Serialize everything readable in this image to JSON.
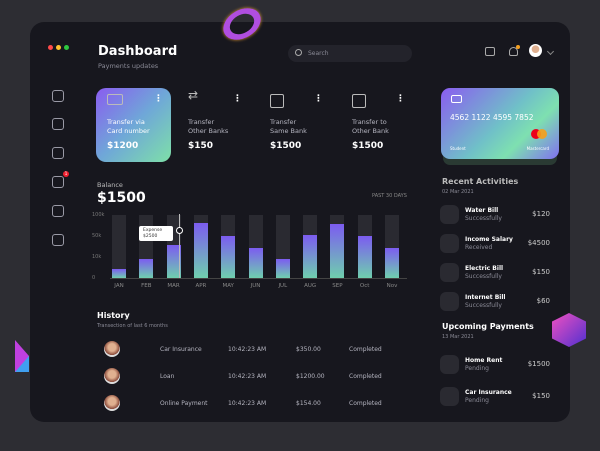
{
  "header": {
    "title": "Dashboard",
    "subtitle": "Payments updates",
    "search_placeholder": "Search"
  },
  "colors": {
    "accent_purple": "#7c5cf0",
    "accent_green": "#6fcfae",
    "panel": "#17171e"
  },
  "sidebar": {
    "items": [
      {
        "icon": "home-icon"
      },
      {
        "icon": "monitor-icon"
      },
      {
        "icon": "clipboard-icon"
      },
      {
        "icon": "message-icon",
        "badge": "1"
      },
      {
        "icon": "trophy-icon"
      },
      {
        "icon": "document-icon"
      }
    ]
  },
  "transfers": [
    {
      "label1": "Transfer via",
      "label2": "Card number",
      "amount": "$1200",
      "icon": "credit-card-icon"
    },
    {
      "label1": "Transfer",
      "label2": "Other Banks",
      "amount": "$150",
      "icon": "arrows-exchange-icon"
    },
    {
      "label1": "Transfer",
      "label2": "Same Bank",
      "amount": "$1500",
      "icon": "bank-icon"
    },
    {
      "label1": "Transfer to",
      "label2": "Other Bank",
      "amount": "$1500",
      "icon": "receipt-icon"
    }
  ],
  "balance": {
    "label": "Balance",
    "amount": "$1500",
    "period": "PAST 30 DAYS",
    "tooltip_label": "Expense",
    "tooltip_value": "$2500"
  },
  "chart_data": {
    "type": "bar",
    "categories": [
      "JAN",
      "FEB",
      "MAR",
      "APR",
      "MAY",
      "JUN",
      "JUL",
      "AUG",
      "SEP",
      "Oct",
      "Nov"
    ],
    "values": [
      15,
      30,
      52,
      88,
      66,
      48,
      30,
      69,
      85,
      66,
      48
    ],
    "yticks": [
      "100k",
      "50k",
      "10k",
      "0"
    ],
    "ylim": [
      0,
      100
    ],
    "grid": false
  },
  "card": {
    "number": "4562 1122 4595 7852",
    "holder": "Student",
    "brand": "Mastercard"
  },
  "recent": {
    "title": "Recent Activities",
    "date": "02 Mar 2021",
    "items": [
      {
        "name": "Water Bill",
        "status": "Successfully",
        "amount": "$120",
        "icon": "water-icon"
      },
      {
        "name": "Income Salary",
        "status": "Received",
        "amount": "$4500",
        "icon": "wallet-icon"
      },
      {
        "name": "Electric Bill",
        "status": "Successfully",
        "amount": "$150",
        "icon": "lightning-icon"
      },
      {
        "name": "Internet Bill",
        "status": "Successfully",
        "amount": "$60",
        "icon": "wifi-icon"
      }
    ]
  },
  "upcoming": {
    "title": "Upcoming Payments",
    "date": "13 Mar 2021",
    "items": [
      {
        "name": "Home Rent",
        "status": "Pending",
        "amount": "$1500",
        "icon": "home-icon"
      },
      {
        "name": "Car Insurance",
        "status": "Pending",
        "amount": "$150",
        "icon": "car-icon"
      }
    ]
  },
  "history": {
    "title": "History",
    "subtitle": "Transection of last 6 months",
    "rows": [
      {
        "name": "Car Insurance",
        "time": "10:42:23 AM",
        "amount": "$350.00",
        "status": "Completed"
      },
      {
        "name": "Loan",
        "time": "10:42:23 AM",
        "amount": "$1200.00",
        "status": "Completed"
      },
      {
        "name": "Online Payment",
        "time": "10:42:23 AM",
        "amount": "$154.00",
        "status": "Completed"
      }
    ]
  }
}
